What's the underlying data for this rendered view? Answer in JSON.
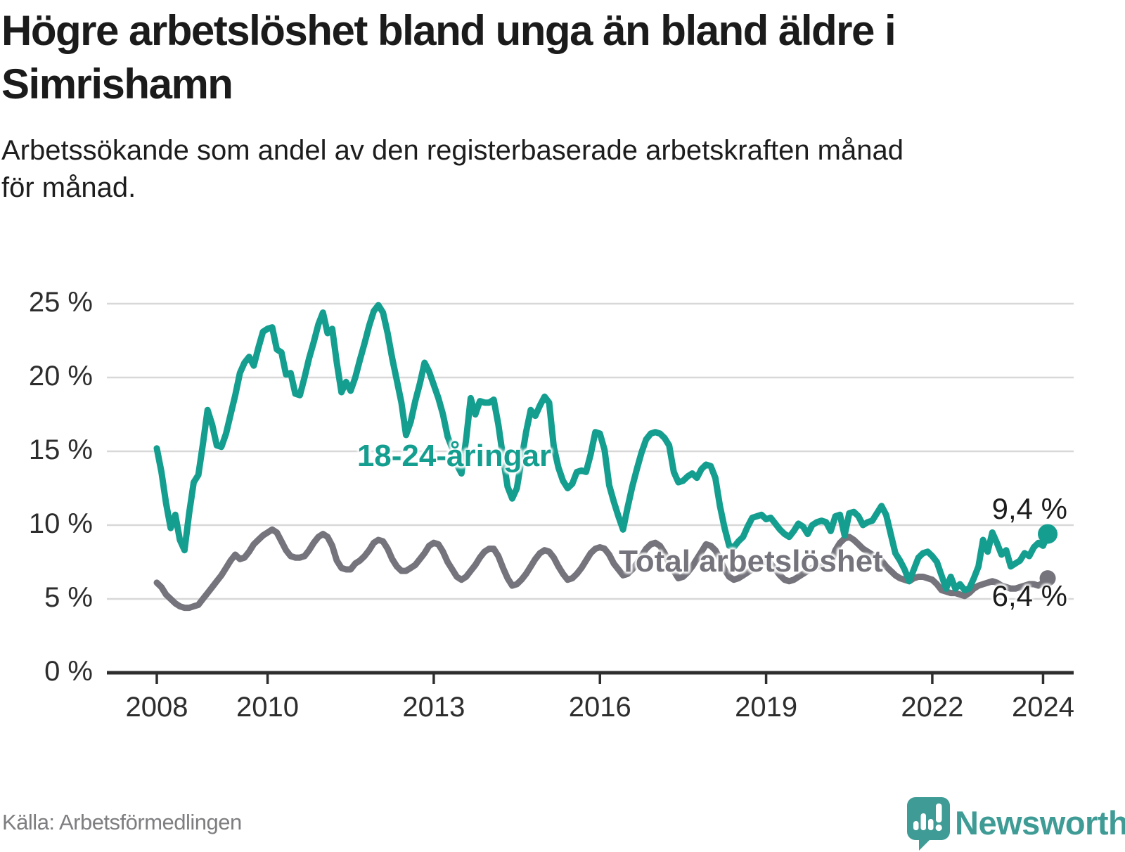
{
  "header": {
    "title": "Högre arbetslöshet bland unga än bland äldre i Simrishamn",
    "title_lines": [
      "Högre arbetslöshet bland unga än bland äldre i",
      "Simrishamn"
    ],
    "subtitle": "Arbetssökande som andel av den registerbaserade arbetskraften månad för månad.",
    "subtitle_lines": [
      "Arbetssökande som andel av den registerbaserade arbetskraften månad",
      "för månad."
    ]
  },
  "footer": {
    "source": "Källa: Arbetsförmedlingen",
    "brand": "Newsworthy",
    "brand_icon": "speech-bubble-bar-chart-exclamation"
  },
  "colors": {
    "youth_line": "#149e8f",
    "total_line": "#75737b",
    "grid": "#d8d8d8",
    "axis": "#2e2e2e",
    "tick_text": "#2d2d2d",
    "title_text": "#1b1b1b",
    "source_text": "#7e7d80",
    "brand_teal": "#3f9b95"
  },
  "chart_data": {
    "type": "line",
    "title": "Högre arbetslöshet bland unga än bland äldre i Simrishamn",
    "xlabel": "",
    "ylabel": "Arbetssökande som andel av den registerbaserade arbetskraften",
    "x_start": "2008-01",
    "x_end": "2024-02",
    "frequency": "monthly",
    "ylim": [
      0,
      25
    ],
    "grid": "horizontal",
    "legend_position": "inline-labels",
    "y_ticks": [
      {
        "value": 25,
        "label": "25 %"
      },
      {
        "value": 20,
        "label": "20 %"
      },
      {
        "value": 15,
        "label": "15 %"
      },
      {
        "value": 10,
        "label": "10 %"
      },
      {
        "value": 5,
        "label": "5 %"
      },
      {
        "value": 0,
        "label": "0 %"
      }
    ],
    "x_ticks": [
      {
        "month_index": 0,
        "label": "2008"
      },
      {
        "month_index": 24,
        "label": "2010"
      },
      {
        "month_index": 60,
        "label": "2013"
      },
      {
        "month_index": 96,
        "label": "2016"
      },
      {
        "month_index": 132,
        "label": "2019"
      },
      {
        "month_index": 168,
        "label": "2022"
      },
      {
        "month_index": 192,
        "label": "2024"
      }
    ],
    "series": [
      {
        "name": "Total arbetslöshet",
        "color": "#75737b",
        "end_label": "6,4 %",
        "end_value": 6.4,
        "values": [
          6.1,
          5.8,
          5.3,
          5.0,
          4.7,
          4.5,
          4.4,
          4.4,
          4.5,
          4.6,
          5.0,
          5.4,
          5.8,
          6.2,
          6.6,
          7.1,
          7.6,
          8.0,
          7.7,
          7.8,
          8.2,
          8.7,
          9.0,
          9.3,
          9.5,
          9.7,
          9.5,
          8.9,
          8.3,
          7.9,
          7.8,
          7.8,
          7.9,
          8.3,
          8.8,
          9.2,
          9.4,
          9.2,
          8.6,
          7.6,
          7.1,
          7.0,
          7.0,
          7.4,
          7.6,
          7.9,
          8.3,
          8.8,
          9.0,
          8.9,
          8.4,
          7.7,
          7.2,
          6.9,
          6.9,
          7.1,
          7.3,
          7.7,
          8.1,
          8.6,
          8.8,
          8.7,
          8.2,
          7.5,
          7.0,
          6.5,
          6.3,
          6.5,
          6.9,
          7.3,
          7.8,
          8.2,
          8.4,
          8.4,
          7.9,
          7.1,
          6.4,
          5.9,
          6.0,
          6.3,
          6.7,
          7.2,
          7.7,
          8.1,
          8.3,
          8.2,
          7.8,
          7.2,
          6.7,
          6.3,
          6.4,
          6.7,
          7.1,
          7.6,
          8.1,
          8.4,
          8.5,
          8.4,
          8.0,
          7.4,
          7.0,
          6.6,
          6.7,
          7.0,
          7.4,
          7.9,
          8.4,
          8.7,
          8.8,
          8.6,
          8.1,
          7.4,
          6.9,
          6.4,
          6.5,
          6.8,
          7.2,
          7.7,
          8.2,
          8.7,
          8.6,
          8.3,
          7.7,
          7.0,
          6.5,
          6.3,
          6.4,
          6.6,
          6.8,
          7.0,
          7.3,
          7.5,
          7.5,
          7.4,
          7.0,
          6.6,
          6.3,
          6.2,
          6.3,
          6.5,
          6.7,
          6.9,
          7.1,
          7.2,
          7.2,
          7.1,
          7.4,
          8.3,
          8.8,
          9.1,
          9.2,
          9.0,
          8.7,
          8.4,
          8.2,
          8.0,
          7.8,
          7.6,
          7.2,
          6.9,
          6.6,
          6.4,
          6.3,
          6.2,
          6.4,
          6.5,
          6.5,
          6.4,
          6.3,
          6.0,
          5.6,
          5.5,
          5.4,
          5.4,
          5.3,
          5.2,
          5.4,
          5.7,
          5.9,
          6.0,
          6.1,
          6.2,
          6.1,
          5.9,
          5.8,
          5.7,
          5.7,
          5.8,
          5.9,
          6.0,
          6.0,
          5.9,
          6.1,
          6.4
        ]
      },
      {
        "name": "18-24-åringar",
        "color": "#149e8f",
        "end_label": "9,4 %",
        "end_value": 9.4,
        "values": [
          15.2,
          13.6,
          11.5,
          9.8,
          10.7,
          9.0,
          8.3,
          10.8,
          12.9,
          13.4,
          15.5,
          17.8,
          16.8,
          15.4,
          15.3,
          16.2,
          17.5,
          18.8,
          20.3,
          21.0,
          21.4,
          20.8,
          22.0,
          23.1,
          23.3,
          23.4,
          21.9,
          21.7,
          20.2,
          20.3,
          18.9,
          18.8,
          20.0,
          21.3,
          22.4,
          23.6,
          24.4,
          23.0,
          23.3,
          21.0,
          19.0,
          19.7,
          19.1,
          20.0,
          21.2,
          22.3,
          23.5,
          24.5,
          24.9,
          24.4,
          23.0,
          21.3,
          19.8,
          18.3,
          16.1,
          17.0,
          18.4,
          19.6,
          21.0,
          20.4,
          19.5,
          18.6,
          17.5,
          16.0,
          15.2,
          14.1,
          13.5,
          15.8,
          18.6,
          17.5,
          18.4,
          18.3,
          18.3,
          18.5,
          16.8,
          14.6,
          12.6,
          11.8,
          12.5,
          14.4,
          16.3,
          17.8,
          17.4,
          18.1,
          18.7,
          18.3,
          15.3,
          13.9,
          13.0,
          12.5,
          12.8,
          13.6,
          13.7,
          13.6,
          14.8,
          16.3,
          16.2,
          15.1,
          12.7,
          11.6,
          10.6,
          9.7,
          11.2,
          12.6,
          13.8,
          14.9,
          15.8,
          16.2,
          16.3,
          16.2,
          15.9,
          15.4,
          13.6,
          12.9,
          13.0,
          13.3,
          13.5,
          13.2,
          13.8,
          14.1,
          14.0,
          13.2,
          11.3,
          9.8,
          8.6,
          8.5,
          8.9,
          9.2,
          9.9,
          10.5,
          10.6,
          10.7,
          10.4,
          10.5,
          10.1,
          9.7,
          9.4,
          9.2,
          9.6,
          10.1,
          9.9,
          9.4,
          10.0,
          10.2,
          10.3,
          10.2,
          9.6,
          10.6,
          10.7,
          9.3,
          10.8,
          10.9,
          10.6,
          10.0,
          10.2,
          10.3,
          10.8,
          11.3,
          10.7,
          9.4,
          8.1,
          7.6,
          7.0,
          6.2,
          7.0,
          7.8,
          8.1,
          8.2,
          7.9,
          7.5,
          6.6,
          5.7,
          6.5,
          5.7,
          6.0,
          5.6,
          5.7,
          6.4,
          7.2,
          9.0,
          8.2,
          9.5,
          8.8,
          8.0,
          8.3,
          7.2,
          7.4,
          7.6,
          8.1,
          7.9,
          8.5,
          8.8,
          8.6,
          9.4
        ]
      }
    ]
  }
}
